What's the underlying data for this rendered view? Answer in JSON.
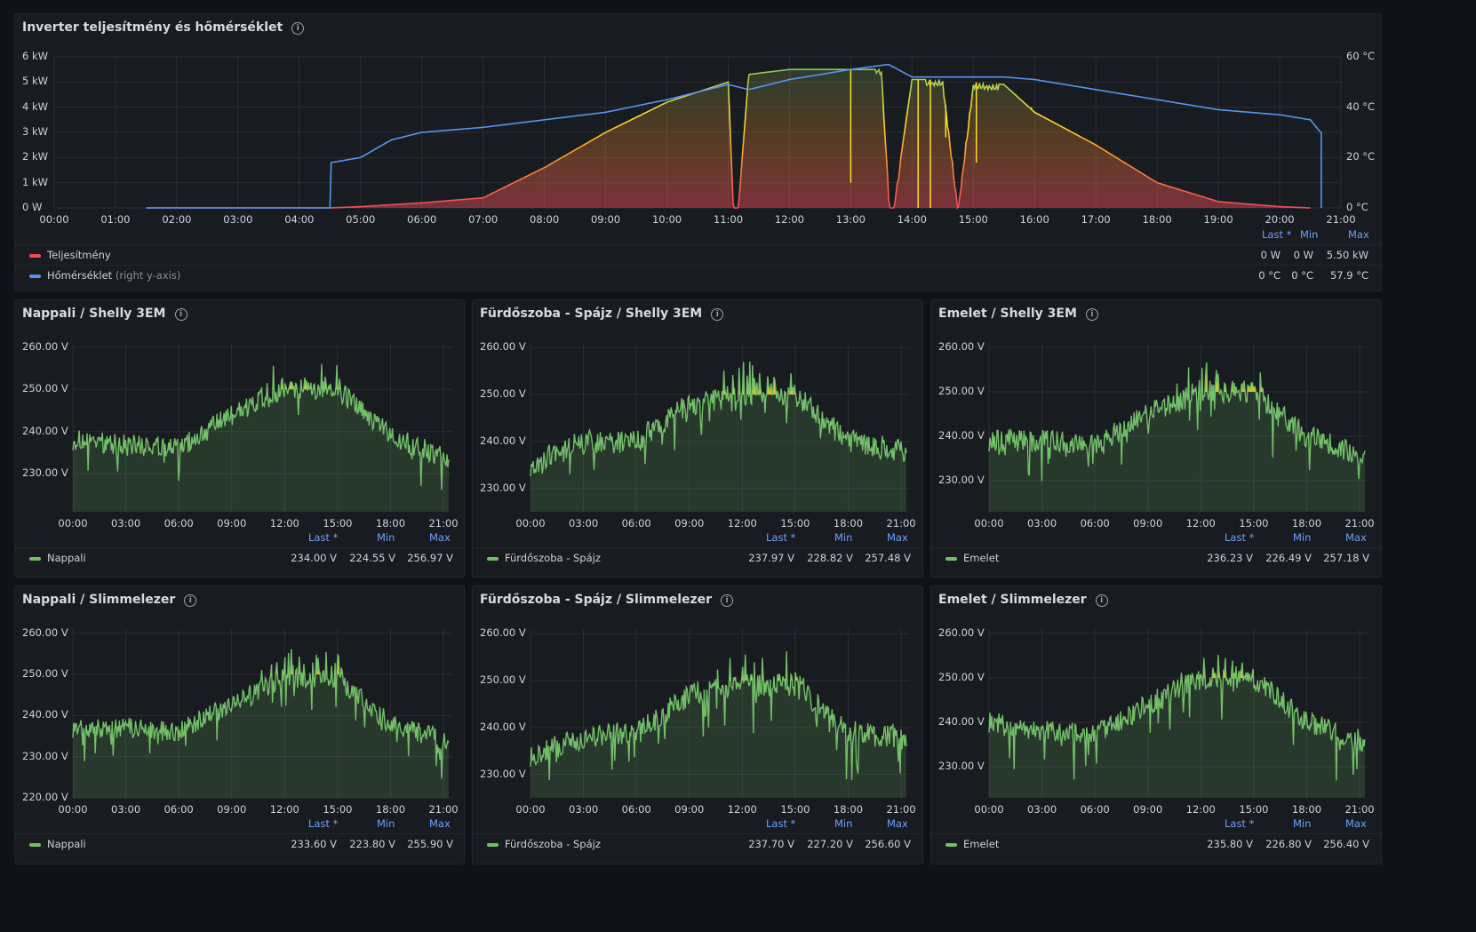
{
  "inverter": {
    "title": "Inverter teljesítmény és hőmérséklet",
    "y_left_ticks": [
      "6 kW",
      "5 kW",
      "4 kW",
      "3 kW",
      "2 kW",
      "1 kW",
      "0 W"
    ],
    "y_right_ticks": [
      "60 °C",
      "40 °C",
      "20 °C",
      "0 °C"
    ],
    "x_ticks": [
      "00:00",
      "01:00",
      "02:00",
      "03:00",
      "04:00",
      "05:00",
      "06:00",
      "07:00",
      "08:00",
      "09:00",
      "10:00",
      "11:00",
      "12:00",
      "13:00",
      "14:00",
      "15:00",
      "16:00",
      "17:00",
      "18:00",
      "19:00",
      "20:00",
      "21:00"
    ],
    "legend_header": {
      "last": "Last *",
      "min": "Min",
      "max": "Max"
    },
    "legend": [
      {
        "name": "Teljesítmény",
        "suffix": "",
        "color": "#f2495c",
        "last": "0 W",
        "min": "0 W",
        "max": "5.50 kW"
      },
      {
        "name": "Hőmérséklet",
        "suffix": "(right y-axis)",
        "color": "#5794f2",
        "last": "0 °C",
        "min": "0 °C",
        "max": "57.9 °C"
      }
    ]
  },
  "voltage_panels": [
    {
      "title": "Nappali / Shelly 3EM",
      "y_ticks": [
        "260.00 V",
        "250.00 V",
        "240.00 V",
        "230.00 V"
      ],
      "x_ticks": [
        "00:00",
        "03:00",
        "06:00",
        "09:00",
        "12:00",
        "15:00",
        "18:00",
        "21:00"
      ],
      "series": "Nappali",
      "last": "234.00 V",
      "min": "224.55 V",
      "max": "256.97 V"
    },
    {
      "title": "Fürdőszoba - Spájz / Shelly 3EM",
      "y_ticks": [
        "260.00 V",
        "250.00 V",
        "240.00 V",
        "230.00 V"
      ],
      "x_ticks": [
        "00:00",
        "03:00",
        "06:00",
        "09:00",
        "12:00",
        "15:00",
        "18:00",
        "21:00"
      ],
      "series": "Fürdőszoba - Spájz",
      "last": "237.97 V",
      "min": "228.82 V",
      "max": "257.48 V"
    },
    {
      "title": "Emelet / Shelly 3EM",
      "y_ticks": [
        "260.00 V",
        "250.00 V",
        "240.00 V",
        "230.00 V"
      ],
      "x_ticks": [
        "00:00",
        "03:00",
        "06:00",
        "09:00",
        "12:00",
        "15:00",
        "18:00",
        "21:00"
      ],
      "series": "Emelet",
      "last": "236.23 V",
      "min": "226.49 V",
      "max": "257.18 V"
    },
    {
      "title": "Nappali / Slimmelezer",
      "y_ticks": [
        "260.00 V",
        "250.00 V",
        "240.00 V",
        "230.00 V",
        "220.00 V"
      ],
      "x_ticks": [
        "00:00",
        "03:00",
        "06:00",
        "09:00",
        "12:00",
        "15:00",
        "18:00",
        "21:00"
      ],
      "series": "Nappali",
      "last": "233.60 V",
      "min": "223.80 V",
      "max": "255.90 V"
    },
    {
      "title": "Fürdőszoba - Spájz / Slimmelezer",
      "y_ticks": [
        "260.00 V",
        "250.00 V",
        "240.00 V",
        "230.00 V"
      ],
      "x_ticks": [
        "00:00",
        "03:00",
        "06:00",
        "09:00",
        "12:00",
        "15:00",
        "18:00",
        "21:00"
      ],
      "series": "Fürdőszoba - Spájz",
      "last": "237.70 V",
      "min": "227.20 V",
      "max": "256.60 V"
    },
    {
      "title": "Emelet / Slimmelezer",
      "y_ticks": [
        "260.00 V",
        "250.00 V",
        "240.00 V",
        "230.00 V"
      ],
      "x_ticks": [
        "00:00",
        "03:00",
        "06:00",
        "09:00",
        "12:00",
        "15:00",
        "18:00",
        "21:00"
      ],
      "series": "Emelet",
      "last": "235.80 V",
      "min": "226.80 V",
      "max": "256.40 V"
    }
  ],
  "voltage_legend_header": {
    "last": "Last *",
    "min": "Min",
    "max": "Max"
  },
  "colors": {
    "green": "#73bf69",
    "yellow": "#fade2a",
    "orange": "#ff9830",
    "red": "#f2495c",
    "blue": "#5794f2",
    "grid": "#2a2d33"
  },
  "chart_data": [
    {
      "type": "line",
      "x_unit": "time of day",
      "series": [
        {
          "name": "Teljesítmény",
          "axis": "left",
          "unit": "kW",
          "x": [
            "01:30",
            "04:30",
            "05:00",
            "06:00",
            "07:00",
            "08:00",
            "09:00",
            "10:00",
            "11:00",
            "11:05",
            "11:10",
            "11:20",
            "12:00",
            "13:00",
            "13:30",
            "13:38",
            "13:42",
            "14:00",
            "14:30",
            "14:45",
            "15:00",
            "15:30",
            "16:00",
            "17:00",
            "18:00",
            "19:00",
            "20:00",
            "20:30"
          ],
          "y": [
            0,
            0,
            0.05,
            0.2,
            0.4,
            1.6,
            3.0,
            4.2,
            5.0,
            0,
            0,
            5.3,
            5.5,
            5.5,
            5.5,
            0,
            0,
            5.1,
            5.1,
            0,
            5.0,
            4.9,
            3.8,
            2.5,
            1.0,
            0.25,
            0.05,
            0
          ]
        },
        {
          "name": "Hőmérséklet",
          "axis": "right",
          "unit": "°C",
          "x": [
            "01:30",
            "04:30",
            "04:31",
            "05:00",
            "05:30",
            "06:00",
            "07:00",
            "08:00",
            "09:00",
            "10:00",
            "11:00",
            "11:20",
            "12:00",
            "13:00",
            "13:37",
            "14:00",
            "15:00",
            "15:30",
            "16:00",
            "17:00",
            "18:00",
            "19:00",
            "20:00",
            "20:30",
            "20:40"
          ],
          "y": [
            0,
            0,
            18,
            20,
            27,
            30,
            32,
            35,
            38,
            43,
            49,
            47,
            51,
            55,
            57,
            52,
            52,
            52,
            51,
            47,
            43,
            39,
            37,
            35,
            30
          ]
        }
      ],
      "ylim_left": [
        0,
        6
      ],
      "ylim_right": [
        0,
        60
      ],
      "grid": true,
      "legend_placement": "bottom"
    },
    {
      "type": "line",
      "series": [
        {
          "name": "Nappali",
          "x": [
            "00:00",
            "03:00",
            "06:00",
            "09:00",
            "12:00",
            "15:00",
            "18:00",
            "21:00"
          ],
          "y": [
            238,
            237,
            236,
            244,
            250,
            250,
            239,
            234
          ]
        }
      ],
      "ylim": [
        221,
        261
      ],
      "thresholds": [
        250,
        255
      ],
      "grid": true
    },
    {
      "type": "line",
      "series": [
        {
          "name": "Fürdőszoba - Spájz",
          "x": [
            "00:00",
            "03:00",
            "06:00",
            "09:00",
            "12:00",
            "15:00",
            "18:00",
            "21:00"
          ],
          "y": [
            235,
            240,
            240,
            248,
            250,
            250,
            240,
            238
          ]
        }
      ],
      "ylim": [
        225,
        261
      ],
      "thresholds": [
        250,
        255
      ],
      "grid": true
    },
    {
      "type": "line",
      "series": [
        {
          "name": "Emelet",
          "x": [
            "00:00",
            "03:00",
            "06:00",
            "09:00",
            "12:00",
            "15:00",
            "18:00",
            "21:00"
          ],
          "y": [
            239,
            239,
            238,
            245,
            250,
            250,
            240,
            236
          ]
        }
      ],
      "ylim": [
        223,
        261
      ],
      "thresholds": [
        250,
        255
      ],
      "grid": true
    },
    {
      "type": "line",
      "series": [
        {
          "name": "Nappali",
          "x": [
            "00:00",
            "03:00",
            "06:00",
            "09:00",
            "12:00",
            "15:00",
            "18:00",
            "21:00"
          ],
          "y": [
            237,
            237,
            236,
            243,
            249,
            249,
            238,
            234
          ]
        }
      ],
      "ylim": [
        220,
        261
      ],
      "thresholds": [
        250,
        255
      ],
      "grid": true
    },
    {
      "type": "line",
      "series": [
        {
          "name": "Fürdőszoba - Spájz",
          "x": [
            "00:00",
            "03:00",
            "06:00",
            "09:00",
            "12:00",
            "15:00",
            "18:00",
            "21:00"
          ],
          "y": [
            234,
            238,
            239,
            247,
            249,
            249,
            239,
            238
          ]
        }
      ],
      "ylim": [
        225,
        261
      ],
      "thresholds": [
        250,
        255
      ],
      "grid": true
    },
    {
      "type": "line",
      "series": [
        {
          "name": "Emelet",
          "x": [
            "00:00",
            "03:00",
            "06:00",
            "09:00",
            "12:00",
            "15:00",
            "18:00",
            "21:00"
          ],
          "y": [
            240,
            238,
            237,
            244,
            250,
            250,
            240,
            236
          ]
        }
      ],
      "ylim": [
        223,
        261
      ],
      "thresholds": [
        250,
        255
      ],
      "grid": true
    }
  ]
}
